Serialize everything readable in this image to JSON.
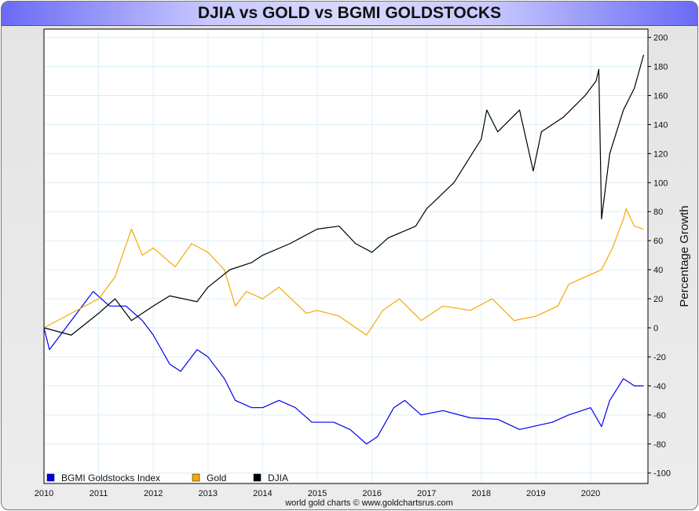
{
  "title": "DJIA vs GOLD vs BGMI GOLDSTOCKS",
  "footer": "world gold charts © www.goldchartsrus.com",
  "chart_data": {
    "type": "line",
    "title": "DJIA vs GOLD vs BGMI GOLDSTOCKS",
    "xlabel": "",
    "ylabel": "Percentage Growth",
    "xlim": [
      2010,
      2021
    ],
    "ylim": [
      -110,
      205
    ],
    "x_ticks": [
      "2010",
      "2011",
      "2012",
      "2013",
      "2014",
      "2015",
      "2016",
      "2017",
      "2018",
      "2019",
      "2020"
    ],
    "y_ticks": [
      "200",
      "180",
      "160",
      "140",
      "120",
      "100",
      "80",
      "60",
      "40",
      "20",
      "0",
      "-20",
      "-40",
      "-60",
      "-80",
      "-100"
    ],
    "grid": true,
    "legend_position": "bottom-left",
    "series": [
      {
        "name": "BGMI Goldstocks Index",
        "color": "#0000ee",
        "points": [
          [
            2010,
            0
          ],
          [
            2010.1,
            -15
          ],
          [
            2010.5,
            5
          ],
          [
            2010.9,
            25
          ],
          [
            2011.2,
            15
          ],
          [
            2011.5,
            15
          ],
          [
            2011.8,
            5
          ],
          [
            2012,
            -5
          ],
          [
            2012.3,
            -25
          ],
          [
            2012.5,
            -30
          ],
          [
            2012.8,
            -15
          ],
          [
            2013,
            -20
          ],
          [
            2013.3,
            -35
          ],
          [
            2013.5,
            -50
          ],
          [
            2013.8,
            -55
          ],
          [
            2014,
            -55
          ],
          [
            2014.3,
            -50
          ],
          [
            2014.6,
            -55
          ],
          [
            2014.9,
            -65
          ],
          [
            2015.3,
            -65
          ],
          [
            2015.6,
            -70
          ],
          [
            2015.9,
            -80
          ],
          [
            2016.1,
            -75
          ],
          [
            2016.4,
            -55
          ],
          [
            2016.6,
            -50
          ],
          [
            2016.9,
            -60
          ],
          [
            2017.3,
            -57
          ],
          [
            2017.8,
            -62
          ],
          [
            2018.3,
            -63
          ],
          [
            2018.7,
            -70
          ],
          [
            2019.3,
            -65
          ],
          [
            2019.6,
            -60
          ],
          [
            2020,
            -55
          ],
          [
            2020.2,
            -68
          ],
          [
            2020.35,
            -50
          ],
          [
            2020.6,
            -35
          ],
          [
            2020.8,
            -40
          ],
          [
            2020.97,
            -40
          ]
        ]
      },
      {
        "name": "Gold",
        "color": "#f5a800",
        "points": [
          [
            2010,
            0
          ],
          [
            2010.5,
            10
          ],
          [
            2011,
            20
          ],
          [
            2011.3,
            35
          ],
          [
            2011.6,
            68
          ],
          [
            2011.8,
            50
          ],
          [
            2012,
            55
          ],
          [
            2012.4,
            42
          ],
          [
            2012.7,
            58
          ],
          [
            2013,
            52
          ],
          [
            2013.3,
            40
          ],
          [
            2013.5,
            15
          ],
          [
            2013.7,
            25
          ],
          [
            2014,
            20
          ],
          [
            2014.3,
            28
          ],
          [
            2014.8,
            10
          ],
          [
            2015,
            12
          ],
          [
            2015.4,
            8
          ],
          [
            2015.9,
            -5
          ],
          [
            2016.2,
            12
          ],
          [
            2016.5,
            20
          ],
          [
            2016.9,
            5
          ],
          [
            2017.3,
            15
          ],
          [
            2017.8,
            12
          ],
          [
            2018.2,
            20
          ],
          [
            2018.6,
            5
          ],
          [
            2019,
            8
          ],
          [
            2019.4,
            15
          ],
          [
            2019.6,
            30
          ],
          [
            2019.9,
            35
          ],
          [
            2020.2,
            40
          ],
          [
            2020.4,
            55
          ],
          [
            2020.6,
            75
          ],
          [
            2020.65,
            82
          ],
          [
            2020.8,
            70
          ],
          [
            2020.97,
            68
          ]
        ]
      },
      {
        "name": "DJIA",
        "color": "#000000",
        "points": [
          [
            2010,
            0
          ],
          [
            2010.5,
            -5
          ],
          [
            2011,
            10
          ],
          [
            2011.3,
            20
          ],
          [
            2011.6,
            5
          ],
          [
            2012,
            15
          ],
          [
            2012.3,
            22
          ],
          [
            2012.8,
            18
          ],
          [
            2013,
            28
          ],
          [
            2013.4,
            40
          ],
          [
            2013.8,
            45
          ],
          [
            2014,
            50
          ],
          [
            2014.5,
            58
          ],
          [
            2015,
            68
          ],
          [
            2015.4,
            70
          ],
          [
            2015.7,
            58
          ],
          [
            2016,
            52
          ],
          [
            2016.3,
            62
          ],
          [
            2016.8,
            70
          ],
          [
            2017,
            82
          ],
          [
            2017.5,
            100
          ],
          [
            2018,
            130
          ],
          [
            2018.1,
            150
          ],
          [
            2018.3,
            135
          ],
          [
            2018.7,
            150
          ],
          [
            2018.95,
            108
          ],
          [
            2019.1,
            135
          ],
          [
            2019.5,
            145
          ],
          [
            2019.9,
            160
          ],
          [
            2020.1,
            170
          ],
          [
            2020.15,
            178
          ],
          [
            2020.2,
            75
          ],
          [
            2020.35,
            120
          ],
          [
            2020.6,
            150
          ],
          [
            2020.8,
            165
          ],
          [
            2020.97,
            188
          ]
        ]
      }
    ]
  }
}
